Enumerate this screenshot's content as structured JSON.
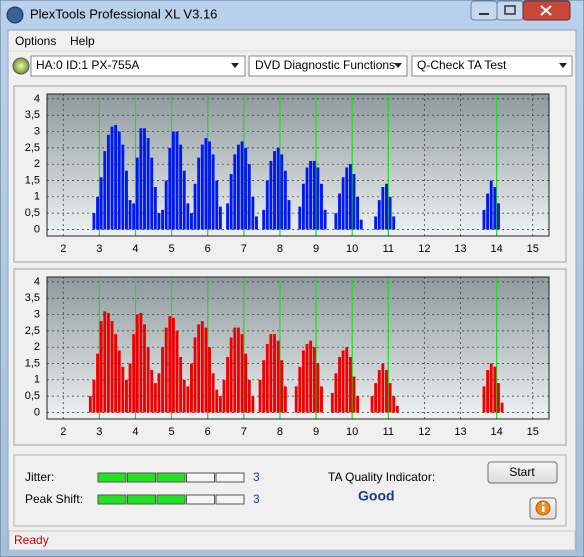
{
  "window": {
    "title": "PlexTools Professional XL V3.16"
  },
  "menu": [
    "Options",
    "Help"
  ],
  "toolbar": {
    "drive": "HA:0 ID:1  PX-755A",
    "function": "DVD Diagnostic Functions",
    "test": "Q-Check TA Test"
  },
  "chart_data": [
    {
      "type": "bar",
      "color": "#0018f0",
      "x": [
        2.85,
        2.95,
        3.05,
        3.15,
        3.25,
        3.35,
        3.45,
        3.55,
        3.65,
        3.75,
        3.85,
        3.95,
        4.05,
        4.15,
        4.25,
        4.35,
        4.45,
        4.55,
        4.65,
        4.75,
        4.85,
        4.95,
        5.05,
        5.15,
        5.25,
        5.35,
        5.45,
        5.55,
        5.65,
        5.75,
        5.85,
        5.95,
        6.05,
        6.15,
        6.25,
        6.35,
        6.55,
        6.65,
        6.75,
        6.85,
        6.95,
        7.05,
        7.15,
        7.25,
        7.35,
        7.55,
        7.65,
        7.75,
        7.85,
        7.95,
        8.05,
        8.15,
        8.25,
        8.55,
        8.65,
        8.75,
        8.85,
        8.95,
        9.05,
        9.15,
        9.25,
        9.55,
        9.65,
        9.75,
        9.85,
        9.95,
        10.05,
        10.15,
        10.25,
        10.65,
        10.75,
        10.85,
        10.95,
        11.05,
        11.15,
        13.65,
        13.75,
        13.85,
        13.95,
        14.05
      ],
      "values": [
        0.5,
        1.0,
        1.6,
        2.4,
        2.9,
        3.15,
        3.2,
        3.0,
        2.6,
        1.8,
        0.9,
        0.8,
        2.2,
        3.1,
        3.1,
        2.8,
        2.2,
        1.3,
        0.5,
        0.6,
        1.5,
        2.5,
        3.0,
        3.0,
        2.6,
        1.8,
        0.8,
        0.5,
        1.4,
        2.2,
        2.6,
        2.8,
        2.7,
        2.3,
        1.5,
        0.7,
        0.8,
        1.7,
        2.3,
        2.6,
        2.7,
        2.5,
        2.0,
        1.0,
        0.4,
        0.6,
        1.5,
        2.1,
        2.4,
        2.5,
        2.3,
        1.8,
        0.9,
        0.7,
        1.4,
        1.9,
        2.1,
        2.1,
        1.9,
        1.4,
        0.6,
        0.5,
        1.1,
        1.6,
        1.9,
        2.0,
        1.7,
        1.0,
        0.3,
        0.4,
        0.9,
        1.3,
        1.4,
        1.0,
        0.4,
        0.6,
        1.1,
        1.5,
        1.3,
        0.8
      ],
      "markers": [
        3,
        4,
        5,
        6,
        7,
        8,
        9,
        10,
        11,
        14
      ],
      "marker_color": "#22dd22",
      "xlim": [
        1.55,
        15.45
      ],
      "ylim": [
        -0.2,
        4.15
      ],
      "xticks": [
        2,
        3,
        4,
        5,
        6,
        7,
        8,
        9,
        10,
        11,
        12,
        13,
        14,
        15
      ],
      "yticks": [
        0,
        {
          "value": 0.5,
          "label": "0,5"
        },
        1,
        {
          "value": 1.5,
          "label": "1,5"
        },
        2,
        {
          "value": 2.5,
          "label": "2,5"
        },
        3,
        {
          "value": 3.5,
          "label": "3,5"
        },
        4
      ],
      "grid": true
    },
    {
      "type": "bar",
      "color": "#ee0000",
      "x": [
        2.75,
        2.85,
        2.95,
        3.05,
        3.15,
        3.25,
        3.35,
        3.45,
        3.55,
        3.65,
        3.75,
        3.85,
        3.95,
        4.05,
        4.15,
        4.25,
        4.35,
        4.45,
        4.55,
        4.65,
        4.75,
        4.85,
        4.95,
        5.05,
        5.15,
        5.25,
        5.35,
        5.45,
        5.55,
        5.65,
        5.75,
        5.85,
        5.95,
        6.05,
        6.15,
        6.25,
        6.35,
        6.45,
        6.55,
        6.65,
        6.75,
        6.85,
        6.95,
        7.05,
        7.15,
        7.25,
        7.45,
        7.55,
        7.65,
        7.75,
        7.85,
        7.95,
        8.05,
        8.15,
        8.45,
        8.55,
        8.65,
        8.75,
        8.85,
        8.95,
        9.05,
        9.15,
        9.45,
        9.55,
        9.65,
        9.75,
        9.85,
        9.95,
        10.05,
        10.15,
        10.55,
        10.65,
        10.75,
        10.85,
        10.95,
        11.05,
        11.15,
        11.25,
        13.65,
        13.75,
        13.85,
        13.95,
        14.05,
        14.15
      ],
      "values": [
        0.5,
        1.0,
        1.8,
        2.8,
        3.1,
        3.05,
        2.8,
        2.4,
        1.9,
        1.4,
        1.0,
        1.5,
        2.4,
        3.0,
        3.05,
        2.7,
        2.0,
        1.3,
        0.9,
        1.2,
        2.0,
        2.6,
        2.95,
        2.9,
        2.5,
        1.7,
        1.0,
        0.8,
        1.5,
        2.3,
        2.7,
        2.8,
        2.6,
        2.0,
        1.2,
        0.7,
        0.5,
        1.0,
        1.7,
        2.3,
        2.6,
        2.6,
        2.4,
        1.8,
        1.0,
        0.5,
        1.0,
        1.6,
        2.1,
        2.4,
        2.4,
        2.2,
        1.6,
        0.8,
        0.8,
        1.4,
        1.9,
        2.1,
        2.2,
        2.0,
        1.5,
        0.8,
        0.6,
        1.2,
        1.7,
        1.9,
        2.0,
        1.7,
        1.1,
        0.5,
        0.5,
        0.9,
        1.3,
        1.5,
        1.3,
        0.9,
        0.5,
        0.2,
        0.8,
        1.3,
        1.5,
        1.4,
        0.9,
        0.3
      ],
      "markers": [
        3,
        4,
        5,
        6,
        7,
        8,
        9,
        10,
        11,
        14
      ],
      "marker_color": "#22dd22",
      "xlim": [
        1.55,
        15.45
      ],
      "ylim": [
        -0.2,
        4.15
      ],
      "xticks": [
        2,
        3,
        4,
        5,
        6,
        7,
        8,
        9,
        10,
        11,
        12,
        13,
        14,
        15
      ],
      "yticks": [
        0,
        {
          "value": 0.5,
          "label": "0,5"
        },
        1,
        {
          "value": 1.5,
          "label": "1,5"
        },
        2,
        {
          "value": 2.5,
          "label": "2,5"
        },
        3,
        {
          "value": 3.5,
          "label": "3,5"
        },
        4
      ],
      "grid": true
    }
  ],
  "results": {
    "jitter_label": "Jitter:",
    "jitter": 3,
    "peak_shift_label": "Peak Shift:",
    "peak_shift": 3,
    "quality_label": "TA Quality Indicator:",
    "quality": "Good",
    "start_button": "Start"
  },
  "status": "Ready"
}
